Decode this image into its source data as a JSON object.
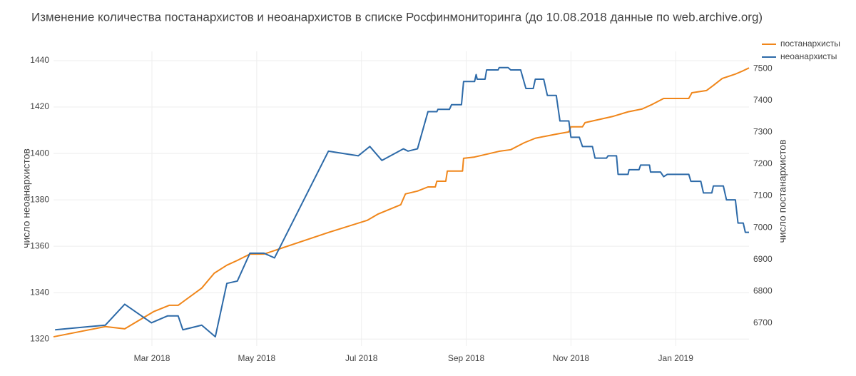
{
  "chart_data": {
    "type": "line",
    "title": "Изменение количества постанархистов и неоанархистов в списке Росфинмониторинга (до 10.08.2018 данные по web.archive.org)",
    "y_label": "число неоанархистов",
    "y2_label": "число постанархистов",
    "xlim": [
      0.12,
      13.4
    ],
    "xticks": [
      {
        "value": 2,
        "label": "Mar 2018"
      },
      {
        "value": 4,
        "label": "May 2018"
      },
      {
        "value": 6,
        "label": "Jul 2018"
      },
      {
        "value": 8,
        "label": "Sep 2018"
      },
      {
        "value": 10,
        "label": "Nov 2018"
      },
      {
        "value": 12,
        "label": "Jan 2019"
      }
    ],
    "ylim": [
      1317,
      1444
    ],
    "yticks": [
      1320,
      1340,
      1360,
      1380,
      1400,
      1420,
      1440
    ],
    "y2lim": [
      6628,
      7554
    ],
    "y2ticks": [
      6700,
      6800,
      6900,
      7000,
      7100,
      7200,
      7300,
      7400,
      7500
    ],
    "grid": true,
    "legend": "top-right",
    "series": [
      {
        "name": "постанархисты",
        "color": "#f0861a",
        "axis": "y2",
        "x": [
          0.12,
          1.11,
          1.48,
          2.03,
          2.33,
          2.5,
          2.95,
          3.19,
          3.43,
          3.63,
          3.87,
          4.14,
          5.37,
          6.11,
          6.32,
          6.75,
          6.84,
          7.07,
          7.27,
          7.41,
          7.44,
          7.61,
          7.64,
          7.93,
          7.95,
          8.16,
          8.63,
          8.85,
          9.11,
          9.32,
          9.72,
          9.96,
          10.0,
          10.22,
          10.27,
          10.81,
          11.09,
          11.36,
          11.56,
          11.77,
          12.25,
          12.31,
          12.59,
          12.72,
          12.89,
          13.13,
          13.26,
          13.4
        ],
        "values": [
          6657,
          6689,
          6682,
          6736,
          6756,
          6756,
          6810,
          6857,
          6882,
          6897,
          6917,
          6917,
          6985,
          7023,
          7043,
          7072,
          7106,
          7115,
          7128,
          7128,
          7146,
          7146,
          7178,
          7178,
          7218,
          7222,
          7240,
          7245,
          7267,
          7281,
          7294,
          7301,
          7317,
          7317,
          7330,
          7350,
          7364,
          7373,
          7388,
          7406,
          7406,
          7424,
          7431,
          7447,
          7469,
          7482,
          7491,
          7502
        ]
      },
      {
        "name": "неоанархисты",
        "color": "#2d6aa8",
        "x": [
          0.15,
          1.11,
          1.48,
          1.99,
          2.3,
          2.5,
          2.59,
          2.95,
          3.21,
          3.43,
          3.63,
          3.87,
          4.14,
          4.34,
          5.37,
          5.94,
          6.16,
          6.39,
          6.8,
          6.89,
          7.07,
          7.27,
          7.44,
          7.46,
          7.68,
          7.72,
          7.91,
          7.95,
          8.16,
          8.19,
          8.21,
          8.36,
          8.39,
          8.61,
          8.63,
          8.8,
          8.85,
          9.04,
          9.14,
          9.28,
          9.32,
          9.48,
          9.55,
          9.72,
          9.79,
          9.96,
          10.0,
          10.16,
          10.22,
          10.41,
          10.46,
          10.68,
          10.71,
          10.87,
          10.9,
          11.09,
          11.11,
          11.3,
          11.33,
          11.5,
          11.52,
          11.71,
          11.77,
          11.84,
          12.25,
          12.29,
          12.48,
          12.53,
          12.69,
          12.72,
          12.91,
          12.97,
          13.14,
          13.19,
          13.29,
          13.33,
          13.4
        ],
        "values": [
          1324,
          1326,
          1335,
          1327,
          1330,
          1330,
          1324,
          1326,
          1321,
          1344,
          1345,
          1357,
          1357,
          1355,
          1401,
          1399,
          1403,
          1397,
          1402,
          1401,
          1402,
          1418,
          1418,
          1419,
          1419,
          1421,
          1421,
          1431,
          1431,
          1434,
          1432,
          1432,
          1436,
          1436,
          1437,
          1437,
          1436,
          1436,
          1428,
          1428,
          1432,
          1432,
          1425,
          1425,
          1414,
          1414,
          1407,
          1407,
          1403,
          1403,
          1398,
          1398,
          1399,
          1399,
          1391,
          1391,
          1393,
          1393,
          1395,
          1395,
          1392,
          1392,
          1390,
          1391,
          1391,
          1388,
          1388,
          1383,
          1383,
          1386,
          1386,
          1380,
          1380,
          1370,
          1370,
          1366,
          1366
        ]
      }
    ]
  }
}
